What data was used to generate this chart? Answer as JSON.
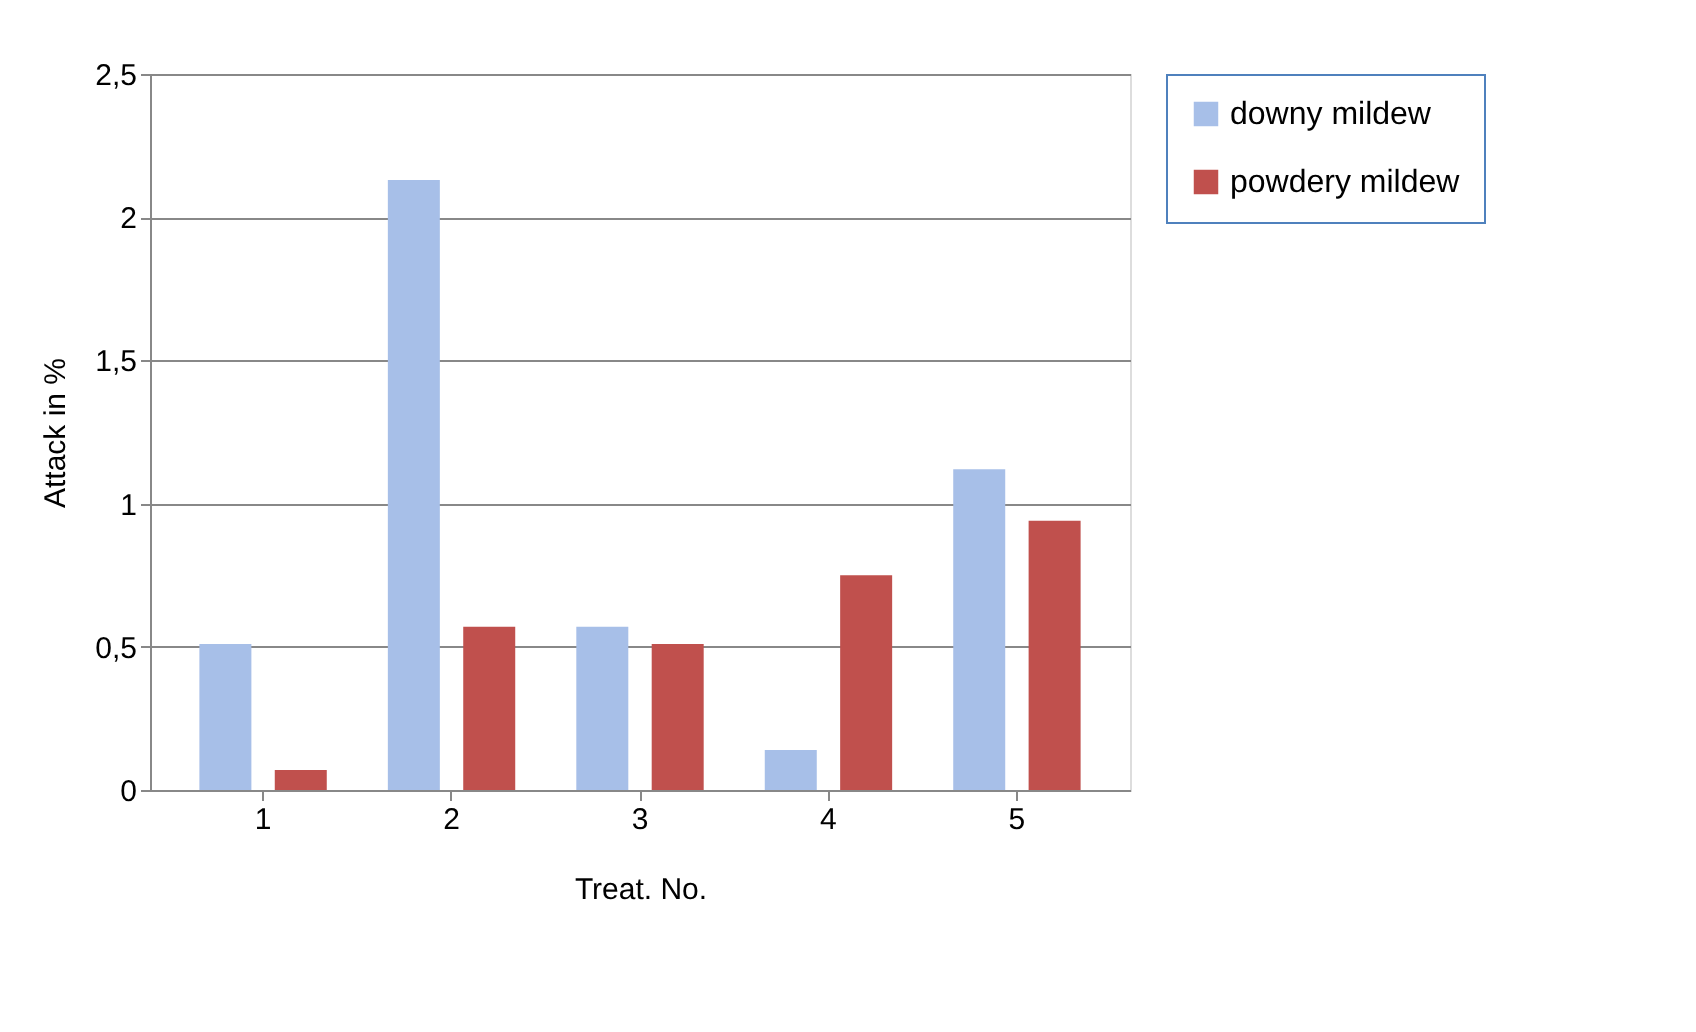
{
  "chart_data": {
    "type": "bar",
    "xlabel": "Treat. No.",
    "ylabel": "Attack in %",
    "categories": [
      "1",
      "2",
      "3",
      "4",
      "5"
    ],
    "series": [
      {
        "name": "downy mildew",
        "color": "#a7bfe8",
        "values": [
          0.51,
          2.13,
          0.57,
          0.14,
          1.12
        ]
      },
      {
        "name": "powdery mildew",
        "color": "#c0504d",
        "values": [
          0.07,
          0.57,
          0.51,
          0.75,
          0.94
        ]
      }
    ],
    "ylim": [
      0,
      2.5
    ],
    "yticks": [
      0,
      {
        "value": 0.5,
        "label": "0,5"
      },
      1,
      {
        "value": 1.5,
        "label": "1,5"
      },
      2,
      {
        "value": 2.5,
        "label": "2,5"
      }
    ],
    "grid": "y",
    "legend": "right"
  }
}
